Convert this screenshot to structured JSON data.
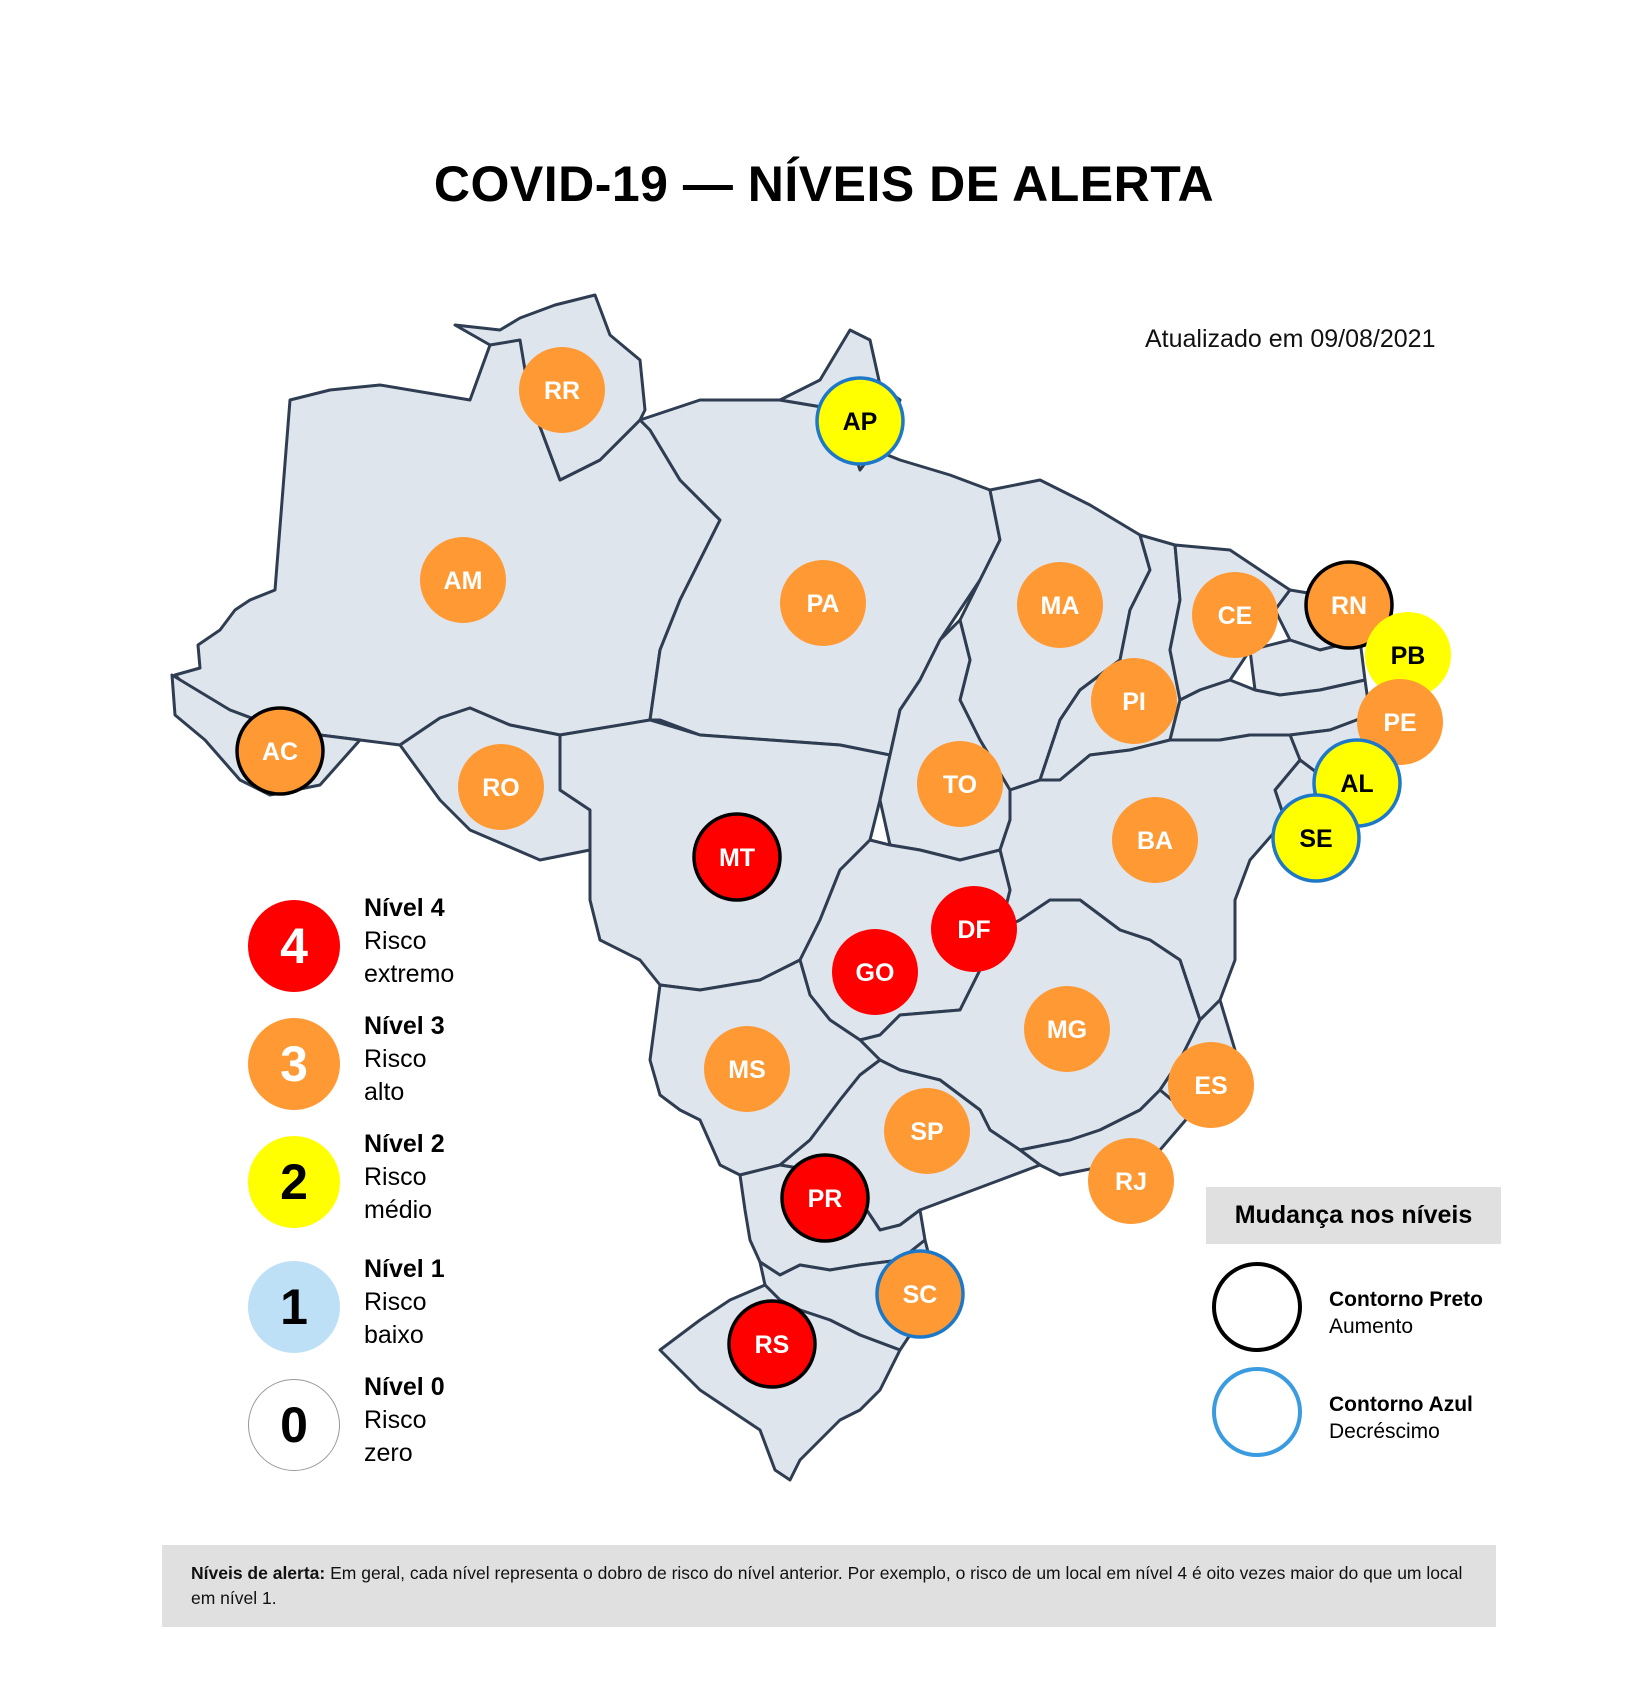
{
  "title": "COVID-19 — NÍVEIS DE ALERTA",
  "updated": "Atualizado em 09/08/2021",
  "colors": {
    "nivel4": "#ff0000",
    "nivel3": "#ff9933",
    "nivel2": "#ffff00",
    "nivel1": "#bde0f7",
    "nivel0": "#ffffff",
    "aumento_outline": "#000000",
    "decrescimo_outline": "#1e78c8",
    "state_fill": "#dfe5ed",
    "state_border": "#2f3d52"
  },
  "states": [
    {
      "code": "RR",
      "level": 3,
      "change": "none"
    },
    {
      "code": "AP",
      "level": 2,
      "change": "decrescimo"
    },
    {
      "code": "AM",
      "level": 3,
      "change": "none"
    },
    {
      "code": "PA",
      "level": 3,
      "change": "none"
    },
    {
      "code": "MA",
      "level": 3,
      "change": "none"
    },
    {
      "code": "CE",
      "level": 3,
      "change": "none"
    },
    {
      "code": "RN",
      "level": 3,
      "change": "aumento"
    },
    {
      "code": "PB",
      "level": 2,
      "change": "none"
    },
    {
      "code": "PE",
      "level": 3,
      "change": "none"
    },
    {
      "code": "PI",
      "level": 3,
      "change": "none"
    },
    {
      "code": "AL",
      "level": 2,
      "change": "decrescimo"
    },
    {
      "code": "SE",
      "level": 2,
      "change": "decrescimo"
    },
    {
      "code": "AC",
      "level": 3,
      "change": "aumento"
    },
    {
      "code": "RO",
      "level": 3,
      "change": "none"
    },
    {
      "code": "TO",
      "level": 3,
      "change": "none"
    },
    {
      "code": "BA",
      "level": 3,
      "change": "none"
    },
    {
      "code": "MT",
      "level": 4,
      "change": "aumento"
    },
    {
      "code": "DF",
      "level": 4,
      "change": "none"
    },
    {
      "code": "GO",
      "level": 4,
      "change": "none"
    },
    {
      "code": "MG",
      "level": 3,
      "change": "none"
    },
    {
      "code": "ES",
      "level": 3,
      "change": "none"
    },
    {
      "code": "MS",
      "level": 3,
      "change": "none"
    },
    {
      "code": "SP",
      "level": 3,
      "change": "none"
    },
    {
      "code": "RJ",
      "level": 3,
      "change": "none"
    },
    {
      "code": "PR",
      "level": 4,
      "change": "aumento"
    },
    {
      "code": "SC",
      "level": 3,
      "change": "decrescimo"
    },
    {
      "code": "RS",
      "level": 4,
      "change": "aumento"
    }
  ],
  "legend": [
    {
      "number": "4",
      "level_label": "Nível 4",
      "risk_line1": "Risco",
      "risk_line2": "extremo"
    },
    {
      "number": "3",
      "level_label": "Nível 3",
      "risk_line1": "Risco",
      "risk_line2": "alto"
    },
    {
      "number": "2",
      "level_label": "Nível 2",
      "risk_line1": "Risco",
      "risk_line2": "médio"
    },
    {
      "number": "1",
      "level_label": "Nível 1",
      "risk_line1": "Risco",
      "risk_line2": "baixo"
    },
    {
      "number": "0",
      "level_label": "Nível 0",
      "risk_line1": "Risco",
      "risk_line2": "zero"
    }
  ],
  "change_legend": {
    "title": "Mudança nos níveis",
    "items": [
      {
        "label": "Contorno Preto",
        "meaning": "Aumento"
      },
      {
        "label": "Contorno Azul",
        "meaning": "Decréscimo"
      }
    ]
  },
  "footnote": {
    "label": "Níveis de alerta:",
    "text": "Em geral, cada nível representa o dobro de risco do nível anterior. Por exemplo, o risco de um local em nível 4 é oito vezes maior do que um local em nível 1."
  }
}
